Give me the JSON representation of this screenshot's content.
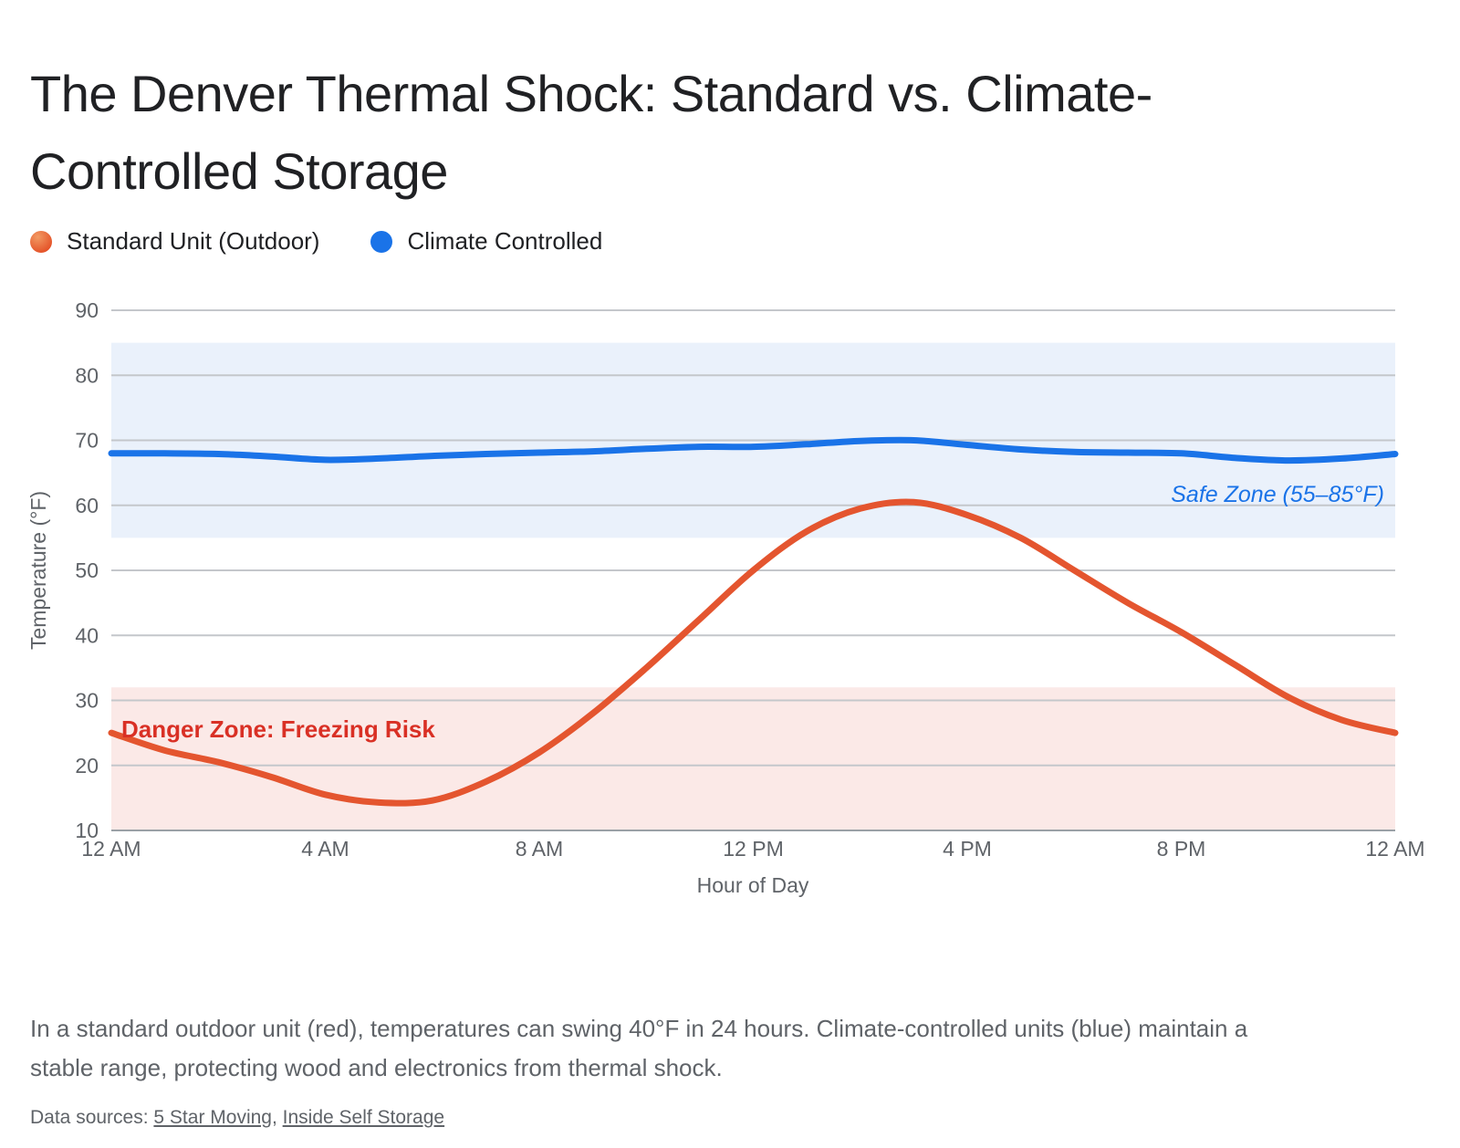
{
  "title": {
    "lines": [
      "The Denver Thermal Shock: Standard vs. Climate-",
      "Controlled Storage"
    ]
  },
  "legend": [
    {
      "label": "Standard Unit (Outdoor)",
      "color": "#e4512a",
      "dot_gradient": [
        "#f29a63",
        "#e03c16"
      ]
    },
    {
      "label": "Climate Controlled",
      "color": "#1a73e8",
      "dot_gradient": [
        "#1a73e8",
        "#1a73e8"
      ]
    }
  ],
  "chart_data": {
    "type": "line",
    "xlabel": "Hour of Day",
    "ylabel": "Temperature (°F)",
    "ylim": [
      10,
      90
    ],
    "yticks": [
      10,
      20,
      30,
      40,
      50,
      60,
      70,
      80,
      90
    ],
    "x_hours": [
      0,
      1,
      2,
      3,
      4,
      5,
      6,
      7,
      8,
      9,
      10,
      11,
      12,
      13,
      14,
      15,
      16,
      17,
      18,
      19,
      20,
      21,
      22,
      23,
      24
    ],
    "xticks": [
      {
        "hour": 0,
        "label": "12 AM"
      },
      {
        "hour": 4,
        "label": "4 AM"
      },
      {
        "hour": 8,
        "label": "8 AM"
      },
      {
        "hour": 12,
        "label": "12 PM"
      },
      {
        "hour": 16,
        "label": "4 PM"
      },
      {
        "hour": 20,
        "label": "8 PM"
      },
      {
        "hour": 24,
        "label": "12 AM"
      }
    ],
    "grid": "horizontal",
    "legend_position": "top-left",
    "series": [
      {
        "name": "Standard Unit (Outdoor)",
        "color": "#e4552f",
        "line_width": 7,
        "values": [
          25,
          22.3,
          20.5,
          18.2,
          15.5,
          14.3,
          14.6,
          17.5,
          22,
          28,
          35,
          42.5,
          50,
          56,
          59.5,
          60.5,
          58.5,
          55,
          50,
          45,
          40.5,
          35.5,
          30.5,
          27,
          25
        ]
      },
      {
        "name": "Climate Controlled",
        "color": "#1a73e8",
        "line_width": 7,
        "values": [
          68,
          68,
          67.9,
          67.5,
          67,
          67.2,
          67.6,
          67.9,
          68.1,
          68.3,
          68.7,
          69,
          69,
          69.4,
          69.9,
          70,
          69.3,
          68.6,
          68.2,
          68.1,
          68,
          67.3,
          66.9,
          67.2,
          67.9
        ]
      }
    ],
    "zones": [
      {
        "name": "safe-zone",
        "label": "Safe Zone (55–85°F)",
        "from": 55,
        "to": 85,
        "band_color": "#eaf1fb",
        "label_color": "#1a73e8"
      },
      {
        "name": "danger-zone",
        "label": "Danger Zone: Freezing Risk",
        "from": 10,
        "to": 32,
        "band_color": "#fbe9e7",
        "label_color": "#d93025"
      }
    ]
  },
  "caption": {
    "lines": [
      "In a standard outdoor unit (red), temperatures can swing 40°F in 24 hours. Climate-controlled units (blue) maintain a",
      "stable range, protecting wood and electronics from thermal shock."
    ]
  },
  "sources": {
    "prefix": "Data sources: ",
    "link1": "5 Star Moving",
    "separator": ", ",
    "link2": "Inside Self Storage"
  }
}
